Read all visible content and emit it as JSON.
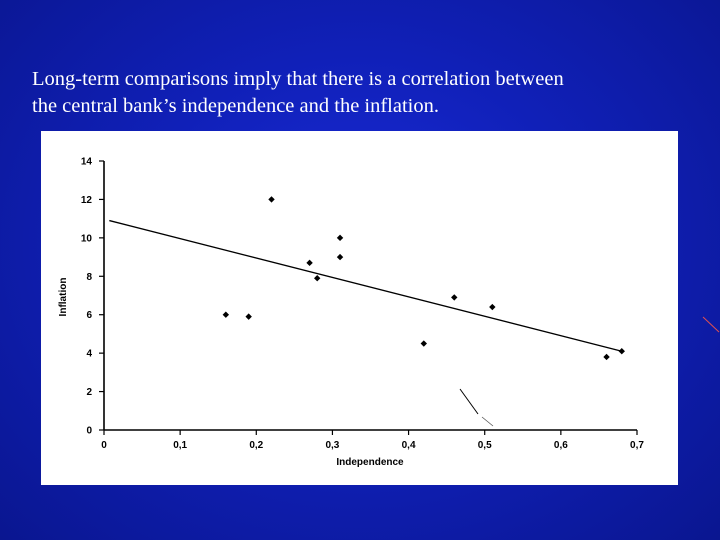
{
  "slide": {
    "caption_lines": [
      "Long-term comparisons imply that there is a correlation between",
      "the central bank’s independence and the inflation."
    ]
  },
  "colors": {
    "background": "#1020b8",
    "text": "#ffffff",
    "panel": "#ffffff",
    "ink": "#000000"
  },
  "chart_data": {
    "type": "scatter",
    "xlabel": "Independence",
    "ylabel": "Inflation",
    "xlim": [
      0,
      0.7
    ],
    "ylim": [
      0,
      14
    ],
    "x_ticks": [
      "0",
      "0,1",
      "0,2",
      "0,3",
      "0,4",
      "0,5",
      "0,6",
      "0,7"
    ],
    "y_ticks": [
      "0",
      "2",
      "4",
      "6",
      "8",
      "10",
      "12",
      "14"
    ],
    "grid": false,
    "legend": "none",
    "points": [
      {
        "x": 0.16,
        "y": 6.0
      },
      {
        "x": 0.19,
        "y": 5.9
      },
      {
        "x": 0.22,
        "y": 12.0
      },
      {
        "x": 0.27,
        "y": 8.7
      },
      {
        "x": 0.28,
        "y": 7.9
      },
      {
        "x": 0.31,
        "y": 10.0
      },
      {
        "x": 0.31,
        "y": 9.0
      },
      {
        "x": 0.42,
        "y": 4.5
      },
      {
        "x": 0.46,
        "y": 6.9
      },
      {
        "x": 0.51,
        "y": 6.4
      },
      {
        "x": 0.66,
        "y": 3.8
      },
      {
        "x": 0.68,
        "y": 4.1
      }
    ],
    "trendline": {
      "x": [
        0.007,
        0.68
      ],
      "y": [
        10.9,
        4.1
      ]
    }
  }
}
